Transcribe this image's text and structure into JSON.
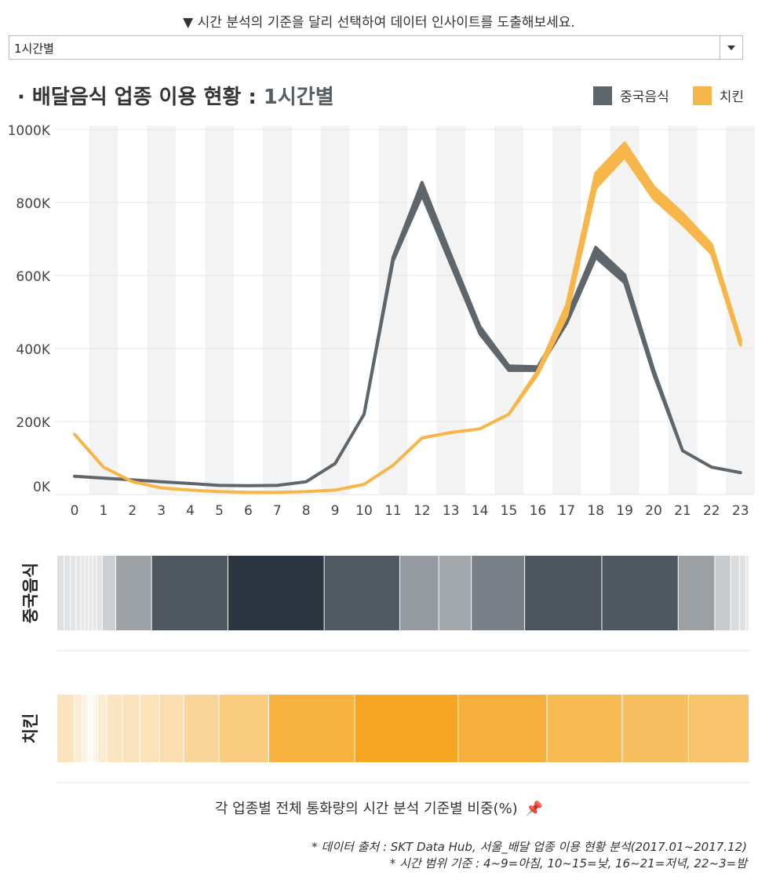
{
  "header": {
    "instruction": "▼ 시간 분석의 기준을 달리 선택하여 데이터 인사이트를 도출해보세요.",
    "select_value": "1시간별",
    "title_prefix": "· 배달음식 업종 이용 현황 : ",
    "title_highlight": "1시간별"
  },
  "colors": {
    "chinese": "#5f666b",
    "chicken": "#f6b649",
    "band": "#f3f3f3"
  },
  "chart_data": [
    {
      "type": "line",
      "ylim": [
        0,
        1000000
      ],
      "yticks": [
        0,
        200000,
        400000,
        600000,
        800000,
        1000000
      ],
      "ytick_labels": [
        "0K",
        "200K",
        "400K",
        "600K",
        "800K",
        "1000K"
      ],
      "categories": [
        "0",
        "1",
        "2",
        "3",
        "4",
        "5",
        "6",
        "7",
        "8",
        "9",
        "10",
        "11",
        "12",
        "13",
        "14",
        "15",
        "16",
        "17",
        "18",
        "19",
        "20",
        "21",
        "22",
        "23"
      ],
      "series": [
        {
          "name": "중국음식",
          "color": "#5f666b",
          "values": [
            50000,
            45000,
            40000,
            35000,
            30000,
            25000,
            24000,
            25000,
            35000,
            85000,
            220000,
            640000,
            820000,
            630000,
            440000,
            340000,
            340000,
            470000,
            650000,
            580000,
            330000,
            120000,
            75000,
            60000
          ],
          "band": [
            0,
            0,
            0,
            0,
            0,
            0,
            0,
            0,
            0,
            0,
            0,
            10000,
            35000,
            25000,
            20000,
            12000,
            10000,
            16000,
            27000,
            22000,
            12000,
            0,
            0,
            0
          ]
        },
        {
          "name": "치킨",
          "color": "#f6b649",
          "values": [
            165000,
            75000,
            35000,
            18000,
            12000,
            8000,
            6000,
            6000,
            8000,
            12000,
            28000,
            80000,
            155000,
            170000,
            180000,
            220000,
            330000,
            490000,
            840000,
            925000,
            810000,
            740000,
            660000,
            410000
          ],
          "band": [
            0,
            0,
            0,
            0,
            0,
            0,
            0,
            0,
            0,
            0,
            0,
            0,
            0,
            0,
            0,
            0,
            9000,
            30000,
            40000,
            38000,
            33000,
            30000,
            25000,
            14000
          ]
        }
      ]
    },
    {
      "type": "heatmap",
      "rows": [
        "중국음식",
        "치킨"
      ],
      "x": [
        "0",
        "1",
        "2",
        "3",
        "4",
        "5",
        "6",
        "7",
        "8",
        "9",
        "10",
        "11",
        "12",
        "13",
        "14",
        "15",
        "16",
        "17",
        "18",
        "19",
        "20",
        "21",
        "22",
        "23"
      ],
      "values": [
        [
          0.9,
          0.8,
          0.7,
          0.6,
          0.5,
          0.5,
          0.5,
          0.5,
          0.7,
          1.7,
          4.5,
          9.6,
          12.1,
          9.5,
          4.9,
          4.1,
          6.7,
          9.7,
          9.6,
          4.6,
          2.0,
          1.1,
          0.8,
          0.4
        ],
        [
          1.8,
          0.8,
          0.4,
          0.2,
          0.1,
          0.1,
          0.1,
          0.1,
          0.1,
          0.2,
          0.3,
          0.9,
          1.6,
          1.8,
          2.0,
          2.5,
          3.6,
          5.1,
          8.8,
          10.6,
          9.1,
          7.7,
          6.8,
          6.2
        ]
      ]
    }
  ],
  "heatmap_caption": "각 업종별 전체 통화량의 시간 분석 기준별 비중(%)",
  "footnotes": {
    "line1": "* 데이터 출처 : SKT Data Hub, 서울_배달 업종 이용 현황 분석(2017.01~2017.12)",
    "line2": "* 시간 범위 기준 : 4~9=아침, 10~15=낮, 16~21=저녁, 22~3=밤"
  }
}
